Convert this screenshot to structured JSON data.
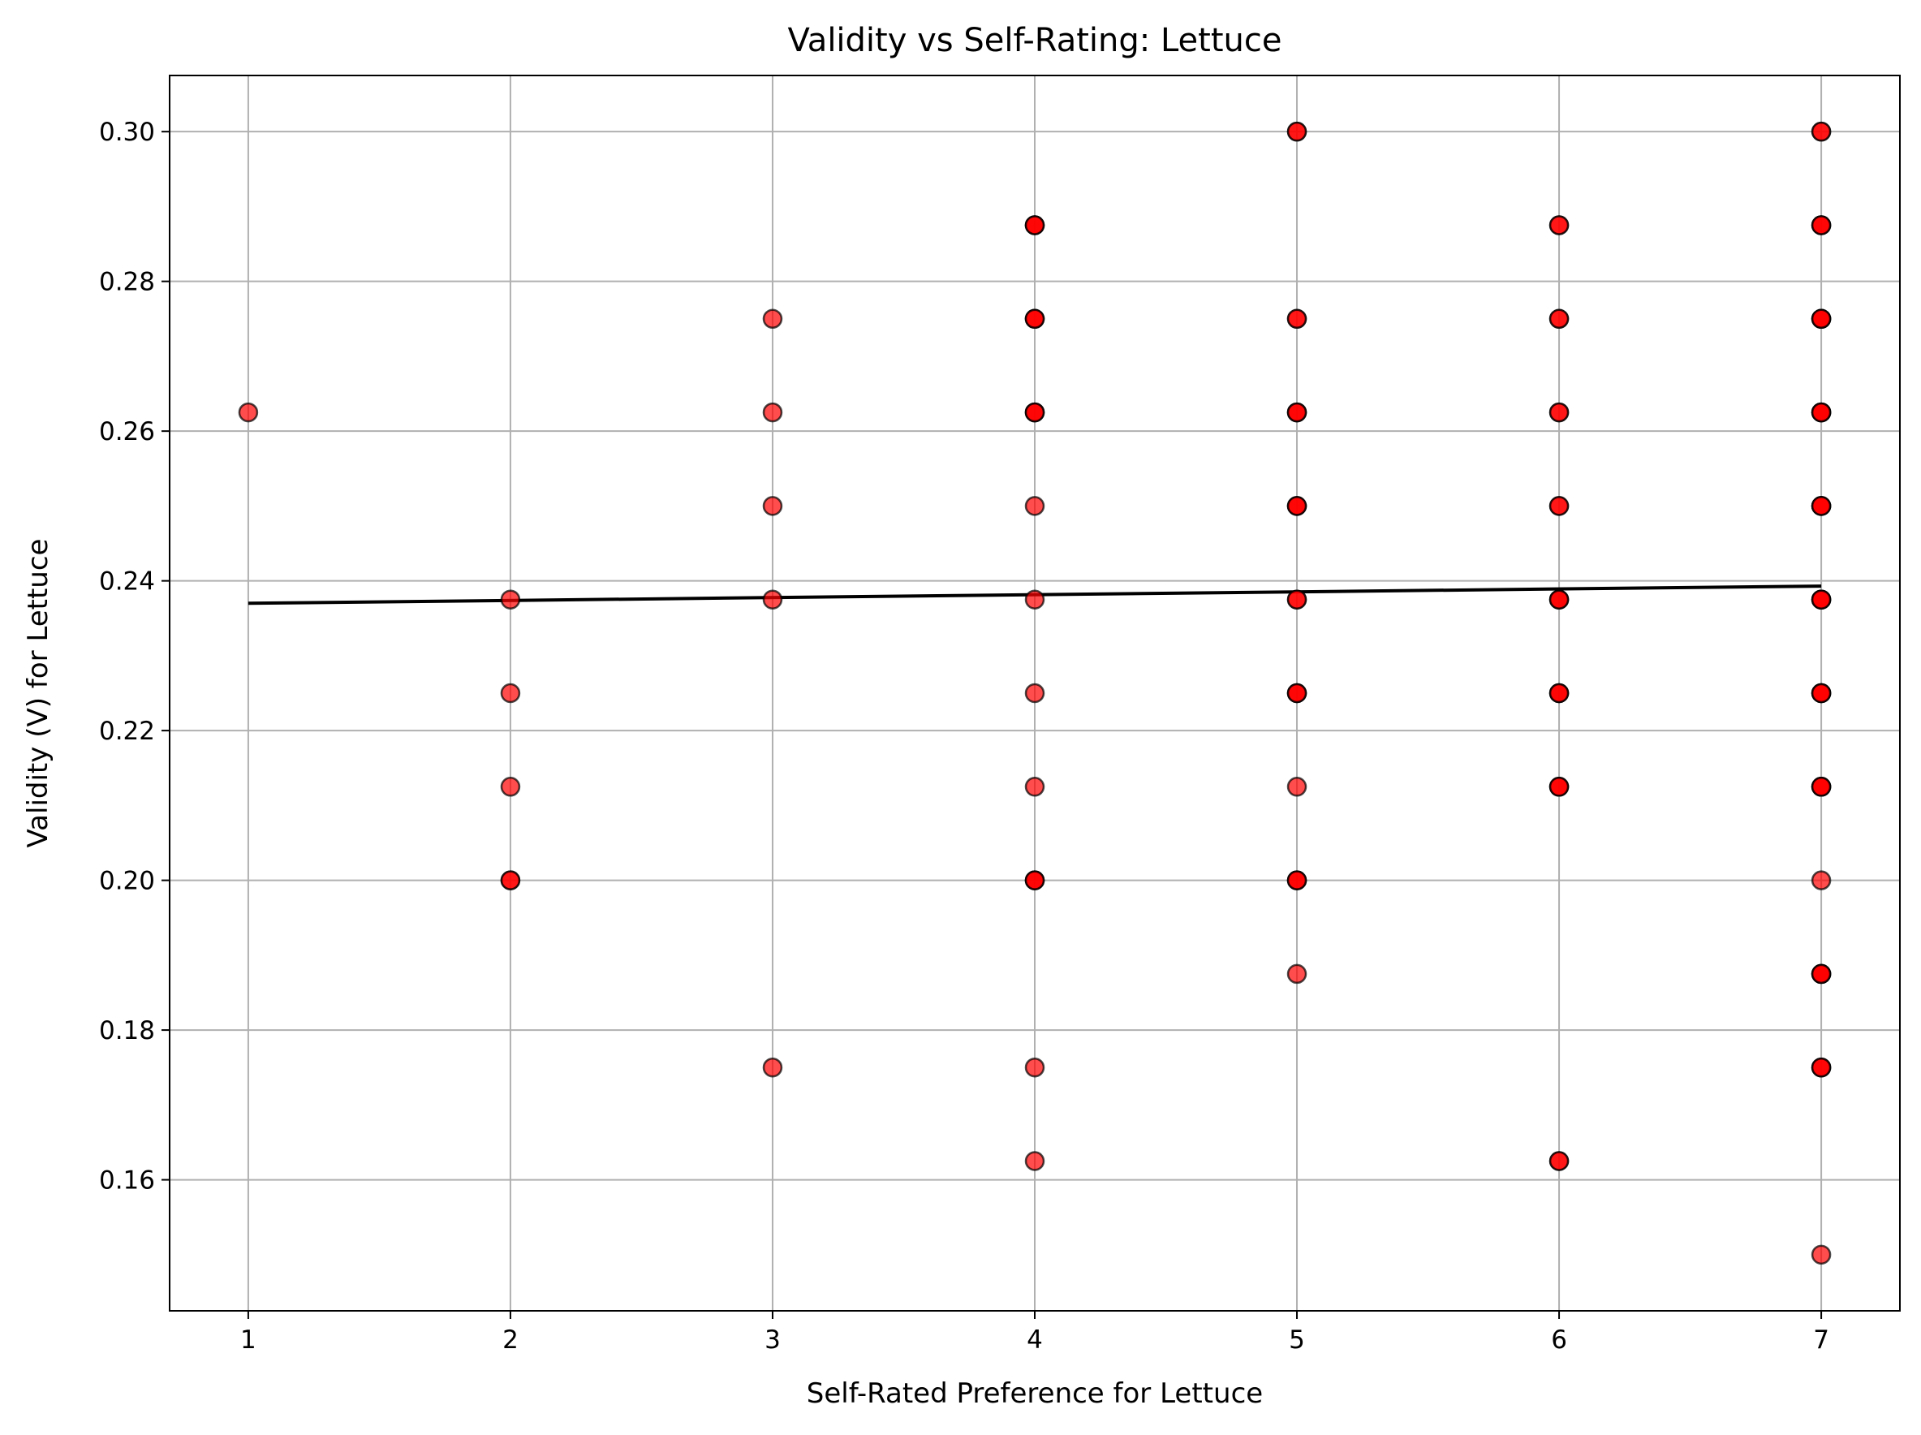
{
  "chart_data": {
    "type": "scatter",
    "title": "Validity vs Self-Rating: Lettuce",
    "xlabel": "Self-Rated Preference for Lettuce",
    "ylabel": "Validity (V) for Lettuce",
    "xlim": [
      0.7,
      7.3
    ],
    "ylim": [
      0.1425,
      0.3075
    ],
    "xticks": [
      1,
      2,
      3,
      4,
      5,
      6,
      7
    ],
    "xtick_labels": [
      "1",
      "2",
      "3",
      "4",
      "5",
      "6",
      "7"
    ],
    "yticks": [
      0.16,
      0.18,
      0.2,
      0.22,
      0.24,
      0.26,
      0.28,
      0.3
    ],
    "ytick_labels": [
      "0.16",
      "0.18",
      "0.20",
      "0.22",
      "0.24",
      "0.26",
      "0.28",
      "0.30"
    ],
    "grid": true,
    "legend": "none",
    "colors": {
      "marker_fill": "#ff0000",
      "marker_edge": "#000000",
      "trend_line": "#000000",
      "grid": "#b0b0b0"
    },
    "marker_alpha": 0.7,
    "series": [
      {
        "points": [
          {
            "x": 1,
            "y": 0.2625
          },
          {
            "x": 2,
            "y": 0.2375
          },
          {
            "x": 2,
            "y": 0.225
          },
          {
            "x": 2,
            "y": 0.2125
          },
          {
            "x": 2,
            "y": 0.2
          },
          {
            "x": 2,
            "y": 0.2
          },
          {
            "x": 3,
            "y": 0.275
          },
          {
            "x": 3,
            "y": 0.2625
          },
          {
            "x": 3,
            "y": 0.25
          },
          {
            "x": 3,
            "y": 0.2375
          },
          {
            "x": 3,
            "y": 0.175
          },
          {
            "x": 4,
            "y": 0.2875
          },
          {
            "x": 4,
            "y": 0.2875
          },
          {
            "x": 4,
            "y": 0.2875
          },
          {
            "x": 4,
            "y": 0.275
          },
          {
            "x": 4,
            "y": 0.275
          },
          {
            "x": 4,
            "y": 0.275
          },
          {
            "x": 4,
            "y": 0.2625
          },
          {
            "x": 4,
            "y": 0.2625
          },
          {
            "x": 4,
            "y": 0.2625
          },
          {
            "x": 4,
            "y": 0.25
          },
          {
            "x": 4,
            "y": 0.2375
          },
          {
            "x": 4,
            "y": 0.225
          },
          {
            "x": 4,
            "y": 0.2125
          },
          {
            "x": 4,
            "y": 0.2
          },
          {
            "x": 4,
            "y": 0.2
          },
          {
            "x": 4,
            "y": 0.2
          },
          {
            "x": 4,
            "y": 0.175
          },
          {
            "x": 4,
            "y": 0.1625
          },
          {
            "x": 5,
            "y": 0.3
          },
          {
            "x": 5,
            "y": 0.3
          },
          {
            "x": 5,
            "y": 0.275
          },
          {
            "x": 5,
            "y": 0.275
          },
          {
            "x": 5,
            "y": 0.2625
          },
          {
            "x": 5,
            "y": 0.2625
          },
          {
            "x": 5,
            "y": 0.2625
          },
          {
            "x": 5,
            "y": 0.25
          },
          {
            "x": 5,
            "y": 0.25
          },
          {
            "x": 5,
            "y": 0.25
          },
          {
            "x": 5,
            "y": 0.2375
          },
          {
            "x": 5,
            "y": 0.2375
          },
          {
            "x": 5,
            "y": 0.225
          },
          {
            "x": 5,
            "y": 0.225
          },
          {
            "x": 5,
            "y": 0.225
          },
          {
            "x": 5,
            "y": 0.2125
          },
          {
            "x": 5,
            "y": 0.2
          },
          {
            "x": 5,
            "y": 0.2
          },
          {
            "x": 5,
            "y": 0.2
          },
          {
            "x": 5,
            "y": 0.1875
          },
          {
            "x": 6,
            "y": 0.2875
          },
          {
            "x": 6,
            "y": 0.2875
          },
          {
            "x": 6,
            "y": 0.275
          },
          {
            "x": 6,
            "y": 0.275
          },
          {
            "x": 6,
            "y": 0.2625
          },
          {
            "x": 6,
            "y": 0.2625
          },
          {
            "x": 6,
            "y": 0.25
          },
          {
            "x": 6,
            "y": 0.25
          },
          {
            "x": 6,
            "y": 0.2375
          },
          {
            "x": 6,
            "y": 0.2375
          },
          {
            "x": 6,
            "y": 0.2375
          },
          {
            "x": 6,
            "y": 0.225
          },
          {
            "x": 6,
            "y": 0.225
          },
          {
            "x": 6,
            "y": 0.225
          },
          {
            "x": 6,
            "y": 0.2125
          },
          {
            "x": 6,
            "y": 0.2125
          },
          {
            "x": 6,
            "y": 0.2125
          },
          {
            "x": 6,
            "y": 0.1625
          },
          {
            "x": 6,
            "y": 0.1625
          },
          {
            "x": 7,
            "y": 0.3
          },
          {
            "x": 7,
            "y": 0.3
          },
          {
            "x": 7,
            "y": 0.2875
          },
          {
            "x": 7,
            "y": 0.2875
          },
          {
            "x": 7,
            "y": 0.2875
          },
          {
            "x": 7,
            "y": 0.275
          },
          {
            "x": 7,
            "y": 0.275
          },
          {
            "x": 7,
            "y": 0.275
          },
          {
            "x": 7,
            "y": 0.275
          },
          {
            "x": 7,
            "y": 0.2625
          },
          {
            "x": 7,
            "y": 0.2625
          },
          {
            "x": 7,
            "y": 0.2625
          },
          {
            "x": 7,
            "y": 0.2625
          },
          {
            "x": 7,
            "y": 0.25
          },
          {
            "x": 7,
            "y": 0.25
          },
          {
            "x": 7,
            "y": 0.25
          },
          {
            "x": 7,
            "y": 0.25
          },
          {
            "x": 7,
            "y": 0.2375
          },
          {
            "x": 7,
            "y": 0.2375
          },
          {
            "x": 7,
            "y": 0.2375
          },
          {
            "x": 7,
            "y": 0.2375
          },
          {
            "x": 7,
            "y": 0.225
          },
          {
            "x": 7,
            "y": 0.225
          },
          {
            "x": 7,
            "y": 0.225
          },
          {
            "x": 7,
            "y": 0.225
          },
          {
            "x": 7,
            "y": 0.2125
          },
          {
            "x": 7,
            "y": 0.2125
          },
          {
            "x": 7,
            "y": 0.2125
          },
          {
            "x": 7,
            "y": 0.2125
          },
          {
            "x": 7,
            "y": 0.2
          },
          {
            "x": 7,
            "y": 0.1875
          },
          {
            "x": 7,
            "y": 0.1875
          },
          {
            "x": 7,
            "y": 0.1875
          },
          {
            "x": 7,
            "y": 0.1875
          },
          {
            "x": 7,
            "y": 0.175
          },
          {
            "x": 7,
            "y": 0.175
          },
          {
            "x": 7,
            "y": 0.175
          },
          {
            "x": 7,
            "y": 0.15
          }
        ]
      }
    ],
    "trend_line": {
      "x": [
        1,
        7
      ],
      "y": [
        0.237,
        0.2393
      ]
    }
  }
}
